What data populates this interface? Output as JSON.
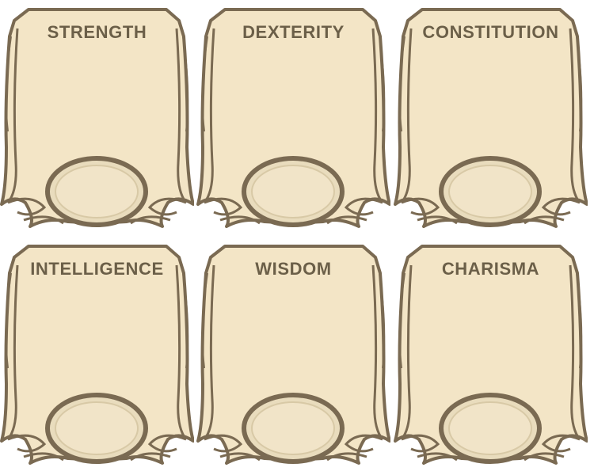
{
  "colors": {
    "parchment": "#f3e5c6",
    "frame": "#7a6a52",
    "score_ring": "#e9dcbd",
    "title_text": "#6b5f48"
  },
  "abilities": [
    {
      "label": "STRENGTH",
      "score": ""
    },
    {
      "label": "DEXTERITY",
      "score": ""
    },
    {
      "label": "CONSTITUTION",
      "score": ""
    },
    {
      "label": "INTELLIGENCE",
      "score": ""
    },
    {
      "label": "WISDOM",
      "score": ""
    },
    {
      "label": "CHARISMA",
      "score": ""
    }
  ]
}
